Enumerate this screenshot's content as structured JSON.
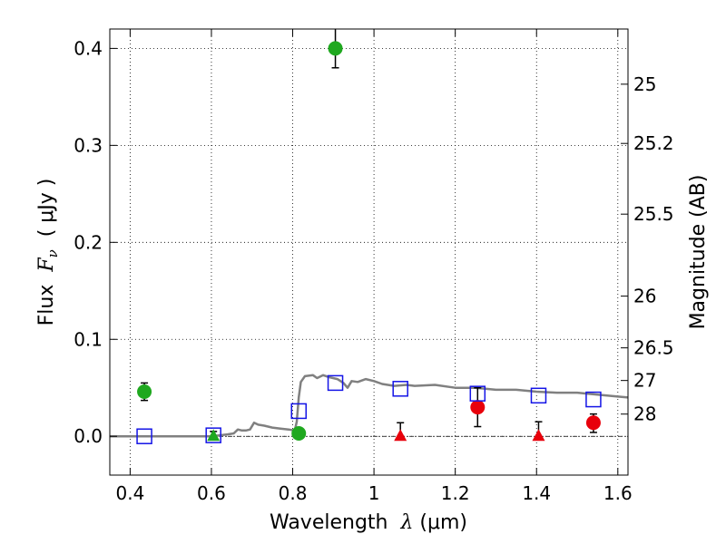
{
  "chart_data": {
    "type": "scatter",
    "title": "",
    "xlabel": {
      "prefix": "Wavelength  ",
      "symbol": "λ",
      "unit": " (μm)"
    },
    "ylabel": {
      "prefix": "Flux  ",
      "symbol": "F",
      "subscript": "ν",
      "unit": "  ( μJy )"
    },
    "ylabel_right": "Magnitude (AB)",
    "xlim": [
      0.35,
      1.625
    ],
    "ylim": [
      -0.04,
      0.42
    ],
    "grid": true,
    "x_ticks": [
      {
        "value": 0.4,
        "label": "0.4"
      },
      {
        "value": 0.6,
        "label": "0.6"
      },
      {
        "value": 0.8,
        "label": "0.8"
      },
      {
        "value": 1.0,
        "label": "1"
      },
      {
        "value": 1.2,
        "label": "1.2"
      },
      {
        "value": 1.4,
        "label": "1.4"
      },
      {
        "value": 1.6,
        "label": "1.6"
      }
    ],
    "y_ticks": [
      {
        "value": 0.0,
        "label": "0.0"
      },
      {
        "value": 0.1,
        "label": "0.1"
      },
      {
        "value": 0.2,
        "label": "0.2"
      },
      {
        "value": 0.3,
        "label": "0.3"
      },
      {
        "value": 0.4,
        "label": "0.4"
      }
    ],
    "y_ticks_right": [
      {
        "value": 25,
        "label": "25"
      },
      {
        "value": 25.2,
        "label": "25.2"
      },
      {
        "value": 25.5,
        "label": "25.5"
      },
      {
        "value": 26,
        "label": "26"
      },
      {
        "value": 26.5,
        "label": "26.5"
      },
      {
        "value": 27,
        "label": "27"
      },
      {
        "value": 28,
        "label": "28"
      }
    ],
    "colors": {
      "green": "#1fa81f",
      "red": "#e8000b",
      "blue": "#1414e6",
      "model": "#808080",
      "errorbar": "#000000"
    },
    "series": [
      {
        "type": "line",
        "color": "#808080",
        "points": [
          [
            0.35,
            0.0
          ],
          [
            0.6,
            0.0
          ],
          [
            0.62,
            0.001
          ],
          [
            0.64,
            0.002
          ],
          [
            0.655,
            0.003
          ],
          [
            0.665,
            0.007
          ],
          [
            0.675,
            0.006
          ],
          [
            0.685,
            0.006
          ],
          [
            0.695,
            0.007
          ],
          [
            0.705,
            0.014
          ],
          [
            0.715,
            0.012
          ],
          [
            0.73,
            0.011
          ],
          [
            0.75,
            0.009
          ],
          [
            0.77,
            0.008
          ],
          [
            0.79,
            0.007
          ],
          [
            0.805,
            0.006
          ],
          [
            0.81,
            0.015
          ],
          [
            0.815,
            0.04
          ],
          [
            0.82,
            0.056
          ],
          [
            0.83,
            0.062
          ],
          [
            0.85,
            0.063
          ],
          [
            0.86,
            0.06
          ],
          [
            0.875,
            0.063
          ],
          [
            0.89,
            0.061
          ],
          [
            0.91,
            0.059
          ],
          [
            0.925,
            0.055
          ],
          [
            0.935,
            0.05
          ],
          [
            0.945,
            0.057
          ],
          [
            0.96,
            0.056
          ],
          [
            0.98,
            0.059
          ],
          [
            1.0,
            0.057
          ],
          [
            1.02,
            0.054
          ],
          [
            1.05,
            0.052
          ],
          [
            1.08,
            0.053
          ],
          [
            1.1,
            0.052
          ],
          [
            1.15,
            0.053
          ],
          [
            1.2,
            0.05
          ],
          [
            1.25,
            0.05
          ],
          [
            1.3,
            0.048
          ],
          [
            1.35,
            0.048
          ],
          [
            1.4,
            0.046
          ],
          [
            1.45,
            0.045
          ],
          [
            1.5,
            0.045
          ],
          [
            1.55,
            0.043
          ],
          [
            1.6,
            0.041
          ],
          [
            1.625,
            0.04
          ]
        ]
      },
      {
        "type": "circle",
        "color": "#1fa81f",
        "points": [
          {
            "x": 0.435,
            "y": 0.046,
            "yerr_low": 0.037,
            "yerr_high": 0.055
          },
          {
            "x": 0.815,
            "y": 0.003,
            "yerr_low": -0.002,
            "yerr_high": 0.006
          },
          {
            "x": 0.905,
            "y": 0.4,
            "yerr_low": 0.38,
            "yerr_high": 0.42
          }
        ]
      },
      {
        "type": "triangle",
        "color": "#1fa81f",
        "points": [
          {
            "x": 0.605,
            "y": 0.0,
            "yerr_low": -0.002,
            "yerr_high": 0.005
          }
        ]
      },
      {
        "type": "circle",
        "color": "#e8000b",
        "points": [
          {
            "x": 1.255,
            "y": 0.03,
            "yerr_low": 0.01,
            "yerr_high": 0.05
          },
          {
            "x": 1.54,
            "y": 0.014,
            "yerr_low": 0.004,
            "yerr_high": 0.023
          }
        ]
      },
      {
        "type": "triangle",
        "color": "#e8000b",
        "points": [
          {
            "x": 1.065,
            "y": 0.0,
            "yerr_low": -0.002,
            "yerr_high": 0.014
          },
          {
            "x": 1.405,
            "y": 0.0,
            "yerr_low": -0.002,
            "yerr_high": 0.015
          }
        ]
      },
      {
        "type": "square",
        "color": "#1414e6",
        "points": [
          {
            "x": 0.435,
            "y": 0.0
          },
          {
            "x": 0.605,
            "y": 0.001
          },
          {
            "x": 0.815,
            "y": 0.026
          },
          {
            "x": 0.905,
            "y": 0.055
          },
          {
            "x": 1.065,
            "y": 0.049
          },
          {
            "x": 1.255,
            "y": 0.044
          },
          {
            "x": 1.405,
            "y": 0.042
          },
          {
            "x": 1.54,
            "y": 0.038
          }
        ]
      }
    ]
  }
}
